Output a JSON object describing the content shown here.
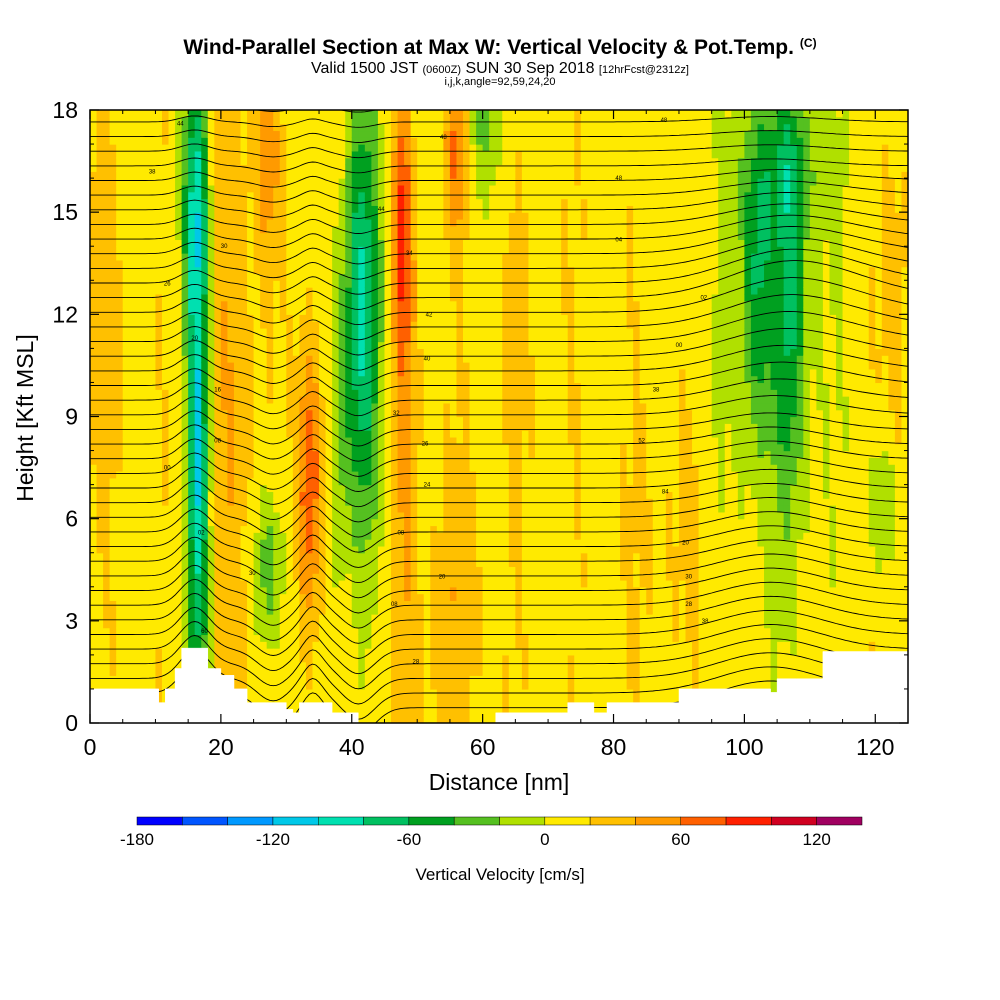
{
  "header": {
    "title": "Wind-Parallel Section at Max W: Vertical Velocity & Pot.Temp.",
    "copyright": "(C)",
    "valid_main": "Valid 1500 JST",
    "valid_z": "(0600Z)",
    "valid_date": "SUN 30 Sep 2018",
    "valid_fcst": "[12hrFcst@2312z]",
    "indices": "i,j,k,angle=92,59,24,20"
  },
  "chart_data": {
    "type": "heatmap",
    "xlabel": "Distance [nm]",
    "ylabel": "Height [Kft MSL]",
    "xlim": [
      0,
      125
    ],
    "ylim": [
      0,
      18
    ],
    "xticks": [
      0,
      20,
      40,
      60,
      80,
      100,
      120
    ],
    "yticks": [
      0,
      3,
      6,
      9,
      12,
      15,
      18
    ],
    "colorbar": {
      "label": "Vertical Velocity [cm/s]",
      "ticks": [
        -180,
        -120,
        -60,
        0,
        60,
        120
      ],
      "levels": [
        -180,
        -160,
        -140,
        -120,
        -100,
        -80,
        -60,
        -40,
        -20,
        0,
        20,
        40,
        60,
        80,
        100,
        120,
        140
      ],
      "colors": [
        "#0000ff",
        "#0055ff",
        "#0099ff",
        "#00c8e8",
        "#00e0b0",
        "#00c060",
        "#00a020",
        "#55c020",
        "#b0e000",
        "#ffea00",
        "#ffc000",
        "#ff9a00",
        "#ff6000",
        "#ff2000",
        "#d00020",
        "#a00060",
        "#600090"
      ]
    },
    "terrain": [
      [
        0,
        1.0
      ],
      [
        3,
        1.0
      ],
      [
        6,
        1.0
      ],
      [
        9,
        1.0
      ],
      [
        10.5,
        0.6
      ],
      [
        11.5,
        1.0
      ],
      [
        13,
        1.6
      ],
      [
        14,
        2.2
      ],
      [
        17,
        2.2
      ],
      [
        18,
        1.6
      ],
      [
        20,
        1.4
      ],
      [
        22,
        1.0
      ],
      [
        24,
        0.6
      ],
      [
        27,
        0.6
      ],
      [
        30,
        0.4
      ],
      [
        31,
        0.3
      ],
      [
        32,
        0.6
      ],
      [
        36,
        0.6
      ],
      [
        37,
        0.3
      ],
      [
        40,
        0.3
      ],
      [
        41,
        0
      ],
      [
        55,
        0
      ],
      [
        62,
        0.3
      ],
      [
        72,
        0.3
      ],
      [
        73,
        0.6
      ],
      [
        76,
        0.6
      ],
      [
        77,
        0.3
      ],
      [
        79,
        0.6
      ],
      [
        90,
        1.0
      ],
      [
        100,
        1.0
      ],
      [
        104,
        0.9
      ],
      [
        105,
        1.3
      ],
      [
        108,
        1.3
      ],
      [
        112,
        2.1
      ],
      [
        125,
        2.1
      ]
    ],
    "w_features": [
      {
        "x": 16.5,
        "y": 8.0,
        "sx": 1.2,
        "sy": 6.0,
        "w": -110
      },
      {
        "x": 16.0,
        "y": 15.5,
        "sx": 1.4,
        "sy": 2.5,
        "w": -60
      },
      {
        "x": 22.0,
        "y": 10.0,
        "sx": 2.5,
        "sy": 8.0,
        "w": 25
      },
      {
        "x": 27.5,
        "y": 4.5,
        "sx": 1.8,
        "sy": 1.6,
        "w": -45
      },
      {
        "x": 33.5,
        "y": 7.0,
        "sx": 1.3,
        "sy": 3.0,
        "w": 70
      },
      {
        "x": 27.0,
        "y": 16.5,
        "sx": 1.2,
        "sy": 2.0,
        "w": 45
      },
      {
        "x": 41.5,
        "y": 12.0,
        "sx": 2.0,
        "sy": 4.5,
        "w": -95
      },
      {
        "x": 38.0,
        "y": 8.0,
        "sx": 1.0,
        "sy": 3.0,
        "w": -30
      },
      {
        "x": 47.5,
        "y": 14.5,
        "sx": 1.0,
        "sy": 2.5,
        "w": 65
      },
      {
        "x": 48.5,
        "y": 9.0,
        "sx": 1.2,
        "sy": 5.0,
        "w": 35
      },
      {
        "x": 56.0,
        "y": 17.0,
        "sx": 1.3,
        "sy": 1.8,
        "w": 55
      },
      {
        "x": 60.0,
        "y": 17.5,
        "sx": 3.0,
        "sy": 1.5,
        "w": -30
      },
      {
        "x": 55.0,
        "y": 3.0,
        "sx": 4.0,
        "sy": 3.0,
        "w": 20
      },
      {
        "x": 66.0,
        "y": 12.0,
        "sx": 5.0,
        "sy": 5.0,
        "w": 8
      },
      {
        "x": 102.0,
        "y": 13.5,
        "sx": 1.6,
        "sy": 3.0,
        "w": -55
      },
      {
        "x": 107.0,
        "y": 13.0,
        "sx": 1.6,
        "sy": 4.0,
        "w": -55
      },
      {
        "x": 104.0,
        "y": 11.0,
        "sx": 6.0,
        "sy": 5.5,
        "w": -28
      },
      {
        "x": 107.0,
        "y": 16.5,
        "sx": 5.0,
        "sy": 1.5,
        "w": -30
      },
      {
        "x": 121.0,
        "y": 6.5,
        "sx": 1.5,
        "sy": 1.5,
        "w": -35
      },
      {
        "x": 123.0,
        "y": 12.0,
        "sx": 1.5,
        "sy": 4.0,
        "w": 25
      },
      {
        "x": 2.0,
        "y": 12.0,
        "sx": 2.5,
        "sy": 4.0,
        "w": 20
      },
      {
        "x": 90.0,
        "y": 6.0,
        "sx": 6.0,
        "sy": 3.0,
        "w": 12
      }
    ],
    "theta_labels": [
      {
        "x": 13.8,
        "y": 17.6,
        "t": "44"
      },
      {
        "x": 9.5,
        "y": 16.2,
        "t": "38"
      },
      {
        "x": 20.5,
        "y": 14.0,
        "t": "30"
      },
      {
        "x": 11.8,
        "y": 12.9,
        "t": "26"
      },
      {
        "x": 16.0,
        "y": 11.3,
        "t": "20"
      },
      {
        "x": 19.5,
        "y": 9.8,
        "t": "16"
      },
      {
        "x": 19.5,
        "y": 8.3,
        "t": "08"
      },
      {
        "x": 11.8,
        "y": 7.5,
        "t": "00"
      },
      {
        "x": 17.0,
        "y": 5.6,
        "t": "02"
      },
      {
        "x": 24.8,
        "y": 4.4,
        "t": "30"
      },
      {
        "x": 17.5,
        "y": 2.7,
        "t": "60"
      },
      {
        "x": 54.0,
        "y": 17.2,
        "t": "48"
      },
      {
        "x": 44.5,
        "y": 15.1,
        "t": "44"
      },
      {
        "x": 48.8,
        "y": 13.8,
        "t": "34"
      },
      {
        "x": 51.8,
        "y": 12.0,
        "t": "42"
      },
      {
        "x": 51.5,
        "y": 10.7,
        "t": "40"
      },
      {
        "x": 46.8,
        "y": 9.1,
        "t": "32"
      },
      {
        "x": 51.2,
        "y": 8.2,
        "t": "26"
      },
      {
        "x": 51.5,
        "y": 7.0,
        "t": "24"
      },
      {
        "x": 47.5,
        "y": 5.6,
        "t": "08"
      },
      {
        "x": 53.8,
        "y": 4.3,
        "t": "20"
      },
      {
        "x": 46.5,
        "y": 3.5,
        "t": "08"
      },
      {
        "x": 49.8,
        "y": 1.8,
        "t": "28"
      },
      {
        "x": 87.7,
        "y": 17.7,
        "t": "48"
      },
      {
        "x": 80.8,
        "y": 16.0,
        "t": "48"
      },
      {
        "x": 80.8,
        "y": 14.2,
        "t": "04"
      },
      {
        "x": 93.8,
        "y": 12.5,
        "t": "02"
      },
      {
        "x": 90.0,
        "y": 11.1,
        "t": "00"
      },
      {
        "x": 86.5,
        "y": 9.8,
        "t": "38"
      },
      {
        "x": 84.3,
        "y": 8.3,
        "t": "52"
      },
      {
        "x": 87.9,
        "y": 6.8,
        "t": "84"
      },
      {
        "x": 91.0,
        "y": 5.3,
        "t": "20"
      },
      {
        "x": 91.5,
        "y": 4.3,
        "t": "30"
      },
      {
        "x": 91.5,
        "y": 3.5,
        "t": "28"
      },
      {
        "x": 94.0,
        "y": 3.0,
        "t": "38"
      }
    ]
  }
}
